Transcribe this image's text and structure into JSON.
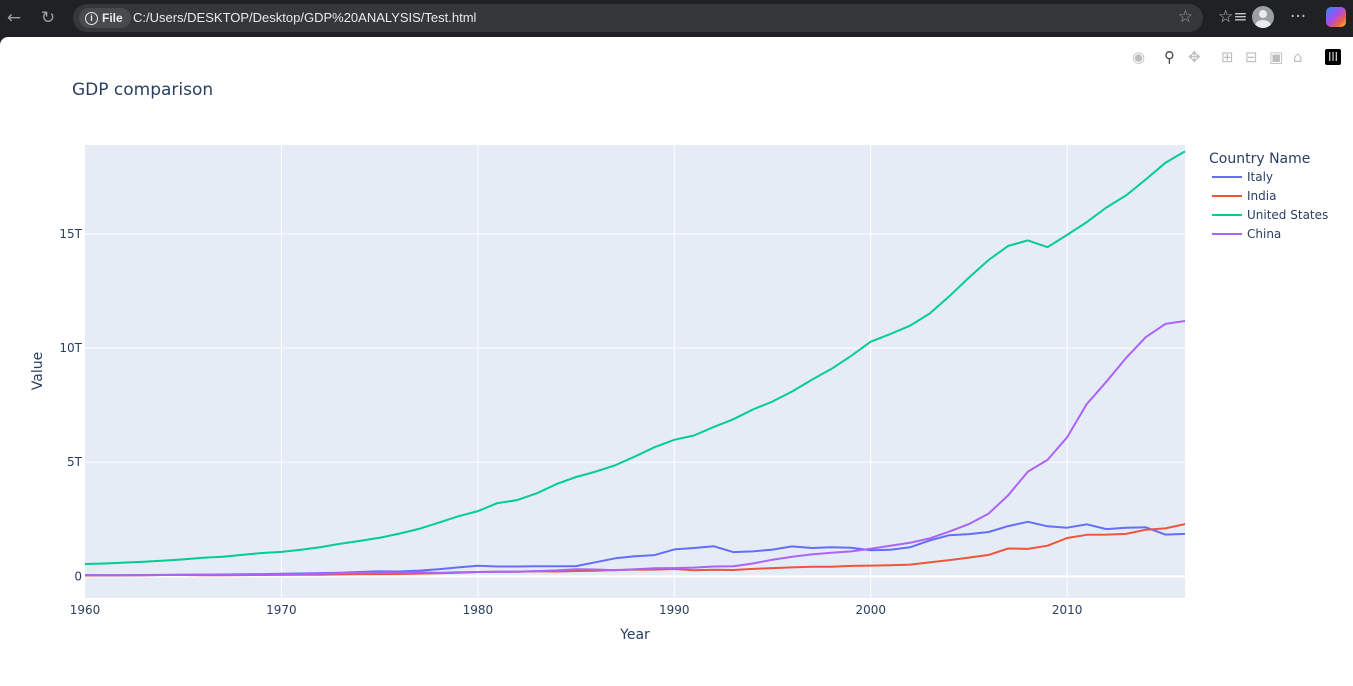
{
  "browser": {
    "back_icon": "arrow-left-icon",
    "refresh_icon": "refresh-icon",
    "info_label": "File",
    "url": "C:/Users/DESKTOP/Desktop/GDP%20ANALYSIS/Test.html",
    "more_label": "···"
  },
  "chart_data": {
    "type": "line",
    "title": "GDP comparison",
    "xlabel": "Year",
    "ylabel": "Value",
    "xlim": [
      1960,
      2016
    ],
    "ylim": [
      -0.95,
      18.9
    ],
    "y_unit": "T",
    "x_ticks": [
      1960,
      1970,
      1980,
      1990,
      2000,
      2010
    ],
    "y_ticks": [
      0,
      5,
      10,
      15
    ],
    "y_tick_labels": [
      "0",
      "5T",
      "10T",
      "15T"
    ],
    "grid": true,
    "legend_title": "Country Name",
    "legend_position": "right",
    "x": [
      1960,
      1961,
      1962,
      1963,
      1964,
      1965,
      1966,
      1967,
      1968,
      1969,
      1970,
      1971,
      1972,
      1973,
      1974,
      1975,
      1976,
      1977,
      1978,
      1979,
      1980,
      1981,
      1982,
      1983,
      1984,
      1985,
      1986,
      1987,
      1988,
      1989,
      1990,
      1991,
      1992,
      1993,
      1994,
      1995,
      1996,
      1997,
      1998,
      1999,
      2000,
      2001,
      2002,
      2003,
      2004,
      2005,
      2006,
      2007,
      2008,
      2009,
      2010,
      2011,
      2012,
      2013,
      2014,
      2015,
      2016
    ],
    "series": [
      {
        "name": "Italy",
        "color": "#636efa",
        "values": [
          0.04,
          0.045,
          0.05,
          0.057,
          0.063,
          0.068,
          0.073,
          0.08,
          0.087,
          0.097,
          0.11,
          0.122,
          0.14,
          0.16,
          0.19,
          0.22,
          0.21,
          0.25,
          0.31,
          0.39,
          0.46,
          0.43,
          0.43,
          0.44,
          0.44,
          0.45,
          0.62,
          0.79,
          0.88,
          0.93,
          1.18,
          1.24,
          1.32,
          1.06,
          1.09,
          1.17,
          1.31,
          1.24,
          1.27,
          1.25,
          1.14,
          1.16,
          1.27,
          1.57,
          1.8,
          1.85,
          1.94,
          2.2,
          2.39,
          2.19,
          2.13,
          2.28,
          2.07,
          2.13,
          2.15,
          1.83,
          1.86
        ]
      },
      {
        "name": "India",
        "color": "#ef553b",
        "values": [
          0.037,
          0.039,
          0.042,
          0.049,
          0.056,
          0.059,
          0.046,
          0.05,
          0.053,
          0.058,
          0.062,
          0.067,
          0.071,
          0.085,
          0.099,
          0.098,
          0.102,
          0.121,
          0.137,
          0.153,
          0.19,
          0.196,
          0.2,
          0.218,
          0.212,
          0.232,
          0.248,
          0.279,
          0.296,
          0.296,
          0.32,
          0.27,
          0.288,
          0.279,
          0.327,
          0.36,
          0.392,
          0.415,
          0.421,
          0.458,
          0.468,
          0.485,
          0.515,
          0.608,
          0.709,
          0.82,
          0.94,
          1.22,
          1.2,
          1.34,
          1.68,
          1.82,
          1.83,
          1.86,
          2.04,
          2.1,
          2.29
        ]
      },
      {
        "name": "United States",
        "color": "#00cc96",
        "values": [
          0.54,
          0.56,
          0.6,
          0.64,
          0.69,
          0.74,
          0.81,
          0.86,
          0.94,
          1.02,
          1.07,
          1.16,
          1.28,
          1.43,
          1.55,
          1.69,
          1.87,
          2.08,
          2.35,
          2.63,
          2.86,
          3.21,
          3.34,
          3.64,
          4.04,
          4.35,
          4.59,
          4.87,
          5.25,
          5.66,
          5.98,
          6.17,
          6.54,
          6.88,
          7.31,
          7.66,
          8.1,
          8.61,
          9.09,
          9.66,
          10.28,
          10.62,
          10.98,
          11.51,
          12.27,
          13.09,
          13.86,
          14.48,
          14.72,
          14.42,
          14.96,
          15.52,
          16.16,
          16.69,
          17.39,
          18.12,
          18.62
        ]
      },
      {
        "name": "China",
        "color": "#ab63fa",
        "values": [
          0.06,
          0.05,
          0.047,
          0.051,
          0.06,
          0.07,
          0.076,
          0.073,
          0.071,
          0.079,
          0.093,
          0.1,
          0.114,
          0.139,
          0.144,
          0.163,
          0.154,
          0.175,
          0.149,
          0.178,
          0.191,
          0.196,
          0.205,
          0.23,
          0.26,
          0.31,
          0.3,
          0.27,
          0.31,
          0.35,
          0.36,
          0.38,
          0.43,
          0.44,
          0.56,
          0.73,
          0.86,
          0.96,
          1.03,
          1.09,
          1.21,
          1.34,
          1.47,
          1.66,
          1.96,
          2.29,
          2.75,
          3.55,
          4.59,
          5.1,
          6.09,
          7.55,
          8.53,
          9.57,
          10.48,
          11.06,
          11.19
        ]
      }
    ]
  },
  "modebar": {
    "camera_icon": "camera-icon",
    "zoom_icon": "zoom-icon",
    "pan_icon": "pan-icon",
    "zoom_in_icon": "zoom-in-icon",
    "zoom_out_icon": "zoom-out-icon",
    "autoscale_icon": "autoscale-icon",
    "reset_icon": "home-icon",
    "logo_icon": "plotly-logo-icon"
  }
}
